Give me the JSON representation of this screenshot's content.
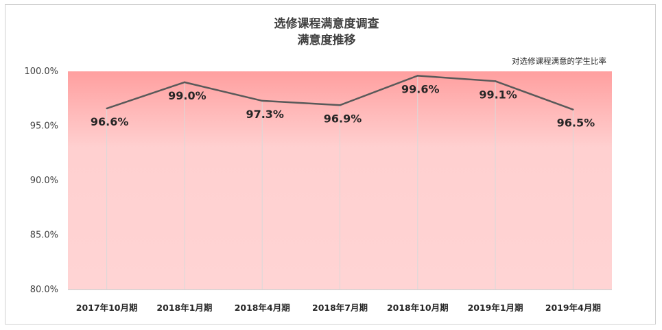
{
  "chart_data": {
    "type": "line",
    "title": "选修课程满意度调查",
    "subtitle": "满意度推移",
    "categories": [
      "2017年10月期",
      "2018年1月期",
      "2018年4月期",
      "2018年7月期",
      "2018年10月期",
      "2019年1月期",
      "2019年4月期"
    ],
    "series": [
      {
        "name": "对选修课程满意的学生比率",
        "values": [
          96.6,
          99.0,
          97.3,
          96.9,
          99.6,
          99.1,
          96.5
        ]
      }
    ],
    "data_labels": [
      "96.6%",
      "99.0%",
      "97.3%",
      "96.9%",
      "99.6%",
      "99.1%",
      "96.5%"
    ],
    "yticks": [
      "100.0%",
      "95.0%",
      "90.0%",
      "85.0%",
      "80.0%"
    ],
    "ylim": [
      80,
      100
    ],
    "xlabel": "",
    "ylabel": "",
    "grid": "vertical drop lines",
    "legend_position": "top-right",
    "line_color": "#595959",
    "plot_fill_top": "#ff9f9f",
    "plot_fill_bottom": "#ffd4d4"
  }
}
